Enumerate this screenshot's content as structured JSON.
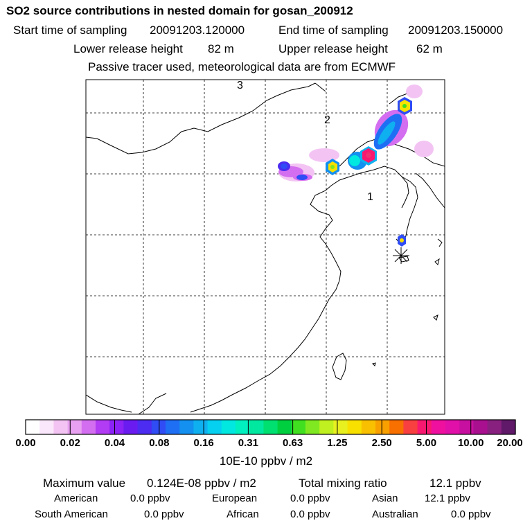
{
  "header": {
    "title": "SO2 source contributions in nested domain for gosan_200912",
    "start_label": "Start time of sampling",
    "start_value": "20091203.120000",
    "end_label": "End time of sampling",
    "end_value": "20091203.150000",
    "lower_label": "Lower release height",
    "lower_value": "82 m",
    "upper_label": "Upper release height",
    "upper_value": "62 m",
    "note": "Passive tracer used, meteorological data are from ECMWF"
  },
  "map": {
    "region_labels": [
      "1",
      "2",
      "3"
    ],
    "receptor_marker": "asterisk-icon"
  },
  "colorbar": {
    "ticks": [
      "0.00",
      "0.02",
      "0.04",
      "0.08",
      "0.16",
      "0.31",
      "0.63",
      "1.25",
      "2.50",
      "5.00",
      "10.00",
      "20.00"
    ],
    "unit_label": "10E-10 ppbv / m2",
    "colors": [
      "#ffffff",
      "#fbe7fb",
      "#f3c4f3",
      "#e8a0f0",
      "#d46ef0",
      "#b13cf3",
      "#8c22f5",
      "#6a1cf0",
      "#4b2cf0",
      "#2f4cf5",
      "#1f6ff5",
      "#1390f0",
      "#0fb0f0",
      "#05d0f0",
      "#00e8e0",
      "#00f0c0",
      "#00e8a0",
      "#00e070",
      "#00d040",
      "#40e020",
      "#80e820",
      "#c0f020",
      "#e8f020",
      "#f8e000",
      "#f8c000",
      "#f8a000",
      "#f87000",
      "#f84040",
      "#f81870",
      "#f010a0",
      "#e010a8",
      "#c810a0",
      "#a81090",
      "#882080",
      "#601868"
    ]
  },
  "stats": {
    "max_label": "Maximum value",
    "max_value": "0.124E-08 ppbv / m2",
    "total_label": "Total mixing ratio",
    "total_value": "12.1 ppbv",
    "regions": [
      {
        "name": "American",
        "value": "0.0 ppbv"
      },
      {
        "name": "European",
        "value": "0.0 ppbv"
      },
      {
        "name": "Asian",
        "value": "12.1 ppbv"
      },
      {
        "name": "South American",
        "value": "0.0 ppbv"
      },
      {
        "name": "African",
        "value": "0.0 ppbv"
      },
      {
        "name": "Australian",
        "value": "0.0 ppbv"
      }
    ]
  }
}
